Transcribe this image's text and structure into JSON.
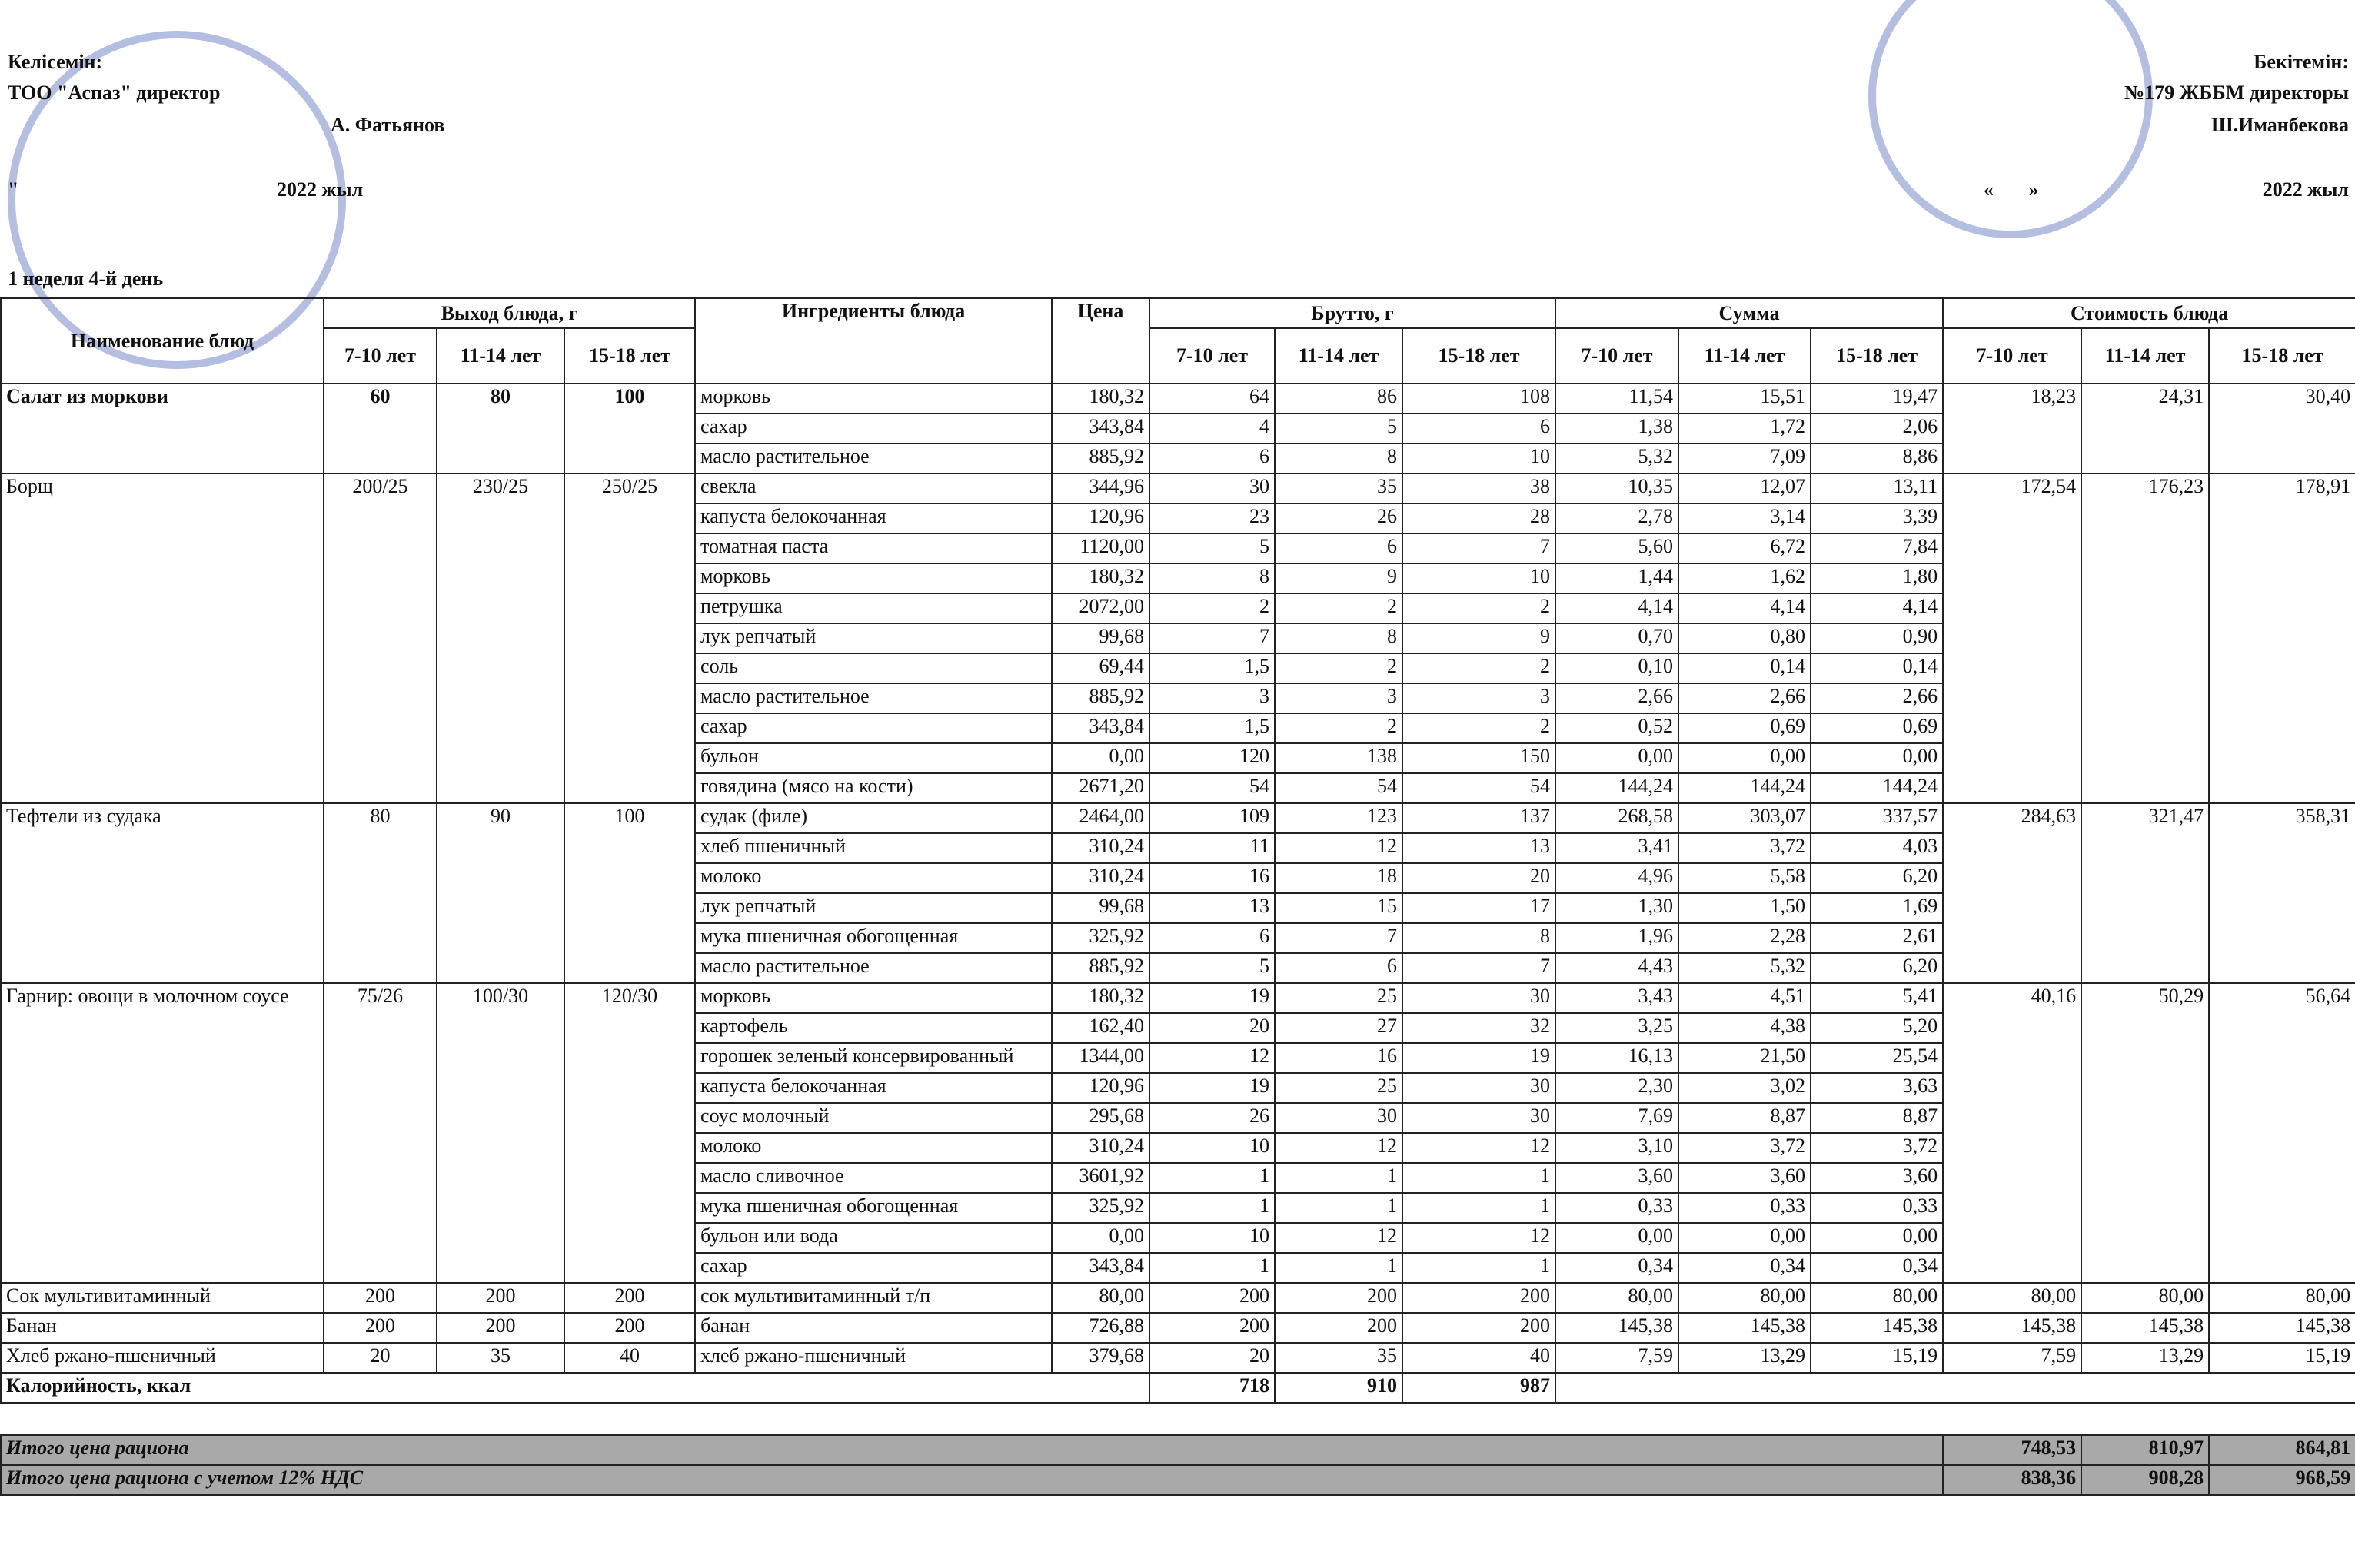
{
  "header": {
    "left": {
      "label": "Келісемін:",
      "position": "ТОО \"Аспаз\" директор",
      "signer": "А. Фатьянов",
      "date_mark": "\"",
      "date_year": "2022 жыл"
    },
    "right": {
      "label": "Бекітемін:",
      "position": "№179 ЖББМ директоры",
      "signer": "Ш.Иманбекова",
      "date_mark": "«       »",
      "date_year": "2022 жыл"
    },
    "day": "1 неделя 4-й день"
  },
  "table": {
    "columns": {
      "name": "Наименование блюд",
      "yield": "Выход блюда, г",
      "ingredients": "Ингредиенты блюда",
      "price": "Цена",
      "gross": "Брутто, г",
      "sum": "Сумма",
      "cost": "Стоимость блюда",
      "ages": [
        "7-10 лет",
        "11-14 лет",
        "15-18 лет"
      ]
    },
    "dishes": [
      {
        "name": "Салат из моркови",
        "yield": [
          "60",
          "80",
          "100"
        ],
        "cost": [
          "18,23",
          "24,31",
          "30,40"
        ],
        "ingredients": [
          [
            "морковь",
            "180,32",
            "64",
            "86",
            "108",
            "11,54",
            "15,51",
            "19,47"
          ],
          [
            "сахар",
            "343,84",
            "4",
            "5",
            "6",
            "1,38",
            "1,72",
            "2,06"
          ],
          [
            "масло растительное",
            "885,92",
            "6",
            "8",
            "10",
            "5,32",
            "7,09",
            "8,86"
          ]
        ]
      },
      {
        "name": "Борщ",
        "yield": [
          "200/25",
          "230/25",
          "250/25"
        ],
        "cost": [
          "172,54",
          "176,23",
          "178,91"
        ],
        "ingredients": [
          [
            "свекла",
            "344,96",
            "30",
            "35",
            "38",
            "10,35",
            "12,07",
            "13,11"
          ],
          [
            "капуста белокочанная",
            "120,96",
            "23",
            "26",
            "28",
            "2,78",
            "3,14",
            "3,39"
          ],
          [
            "томатная паста",
            "1120,00",
            "5",
            "6",
            "7",
            "5,60",
            "6,72",
            "7,84"
          ],
          [
            "морковь",
            "180,32",
            "8",
            "9",
            "10",
            "1,44",
            "1,62",
            "1,80"
          ],
          [
            "петрушка",
            "2072,00",
            "2",
            "2",
            "2",
            "4,14",
            "4,14",
            "4,14"
          ],
          [
            "лук репчатый",
            "99,68",
            "7",
            "8",
            "9",
            "0,70",
            "0,80",
            "0,90"
          ],
          [
            "соль",
            "69,44",
            "1,5",
            "2",
            "2",
            "0,10",
            "0,14",
            "0,14"
          ],
          [
            "масло растительное",
            "885,92",
            "3",
            "3",
            "3",
            "2,66",
            "2,66",
            "2,66"
          ],
          [
            "сахар",
            "343,84",
            "1,5",
            "2",
            "2",
            "0,52",
            "0,69",
            "0,69"
          ],
          [
            "бульон",
            "0,00",
            "120",
            "138",
            "150",
            "0,00",
            "0,00",
            "0,00"
          ],
          [
            "говядина (мясо на кости)",
            "2671,20",
            "54",
            "54",
            "54",
            "144,24",
            "144,24",
            "144,24"
          ]
        ]
      },
      {
        "name": "Тефтели из судака",
        "yield": [
          "80",
          "90",
          "100"
        ],
        "cost": [
          "284,63",
          "321,47",
          "358,31"
        ],
        "ingredients": [
          [
            "судак (филе)",
            "2464,00",
            "109",
            "123",
            "137",
            "268,58",
            "303,07",
            "337,57"
          ],
          [
            "хлеб пшеничный",
            "310,24",
            "11",
            "12",
            "13",
            "3,41",
            "3,72",
            "4,03"
          ],
          [
            "молоко",
            "310,24",
            "16",
            "18",
            "20",
            "4,96",
            "5,58",
            "6,20"
          ],
          [
            "лук репчатый",
            "99,68",
            "13",
            "15",
            "17",
            "1,30",
            "1,50",
            "1,69"
          ],
          [
            "мука пшеничная обогощенная",
            "325,92",
            "6",
            "7",
            "8",
            "1,96",
            "2,28",
            "2,61"
          ],
          [
            "масло растительное",
            "885,92",
            "5",
            "6",
            "7",
            "4,43",
            "5,32",
            "6,20"
          ]
        ]
      },
      {
        "name": "Гарнир: овощи в молочном соусе",
        "yield": [
          "75/26",
          "100/30",
          "120/30"
        ],
        "cost": [
          "40,16",
          "50,29",
          "56,64"
        ],
        "ingredients": [
          [
            "морковь",
            "180,32",
            "19",
            "25",
            "30",
            "3,43",
            "4,51",
            "5,41"
          ],
          [
            "картофель",
            "162,40",
            "20",
            "27",
            "32",
            "3,25",
            "4,38",
            "5,20"
          ],
          [
            "горошек зеленый консервированный",
            "1344,00",
            "12",
            "16",
            "19",
            "16,13",
            "21,50",
            "25,54"
          ],
          [
            "капуста белокочанная",
            "120,96",
            "19",
            "25",
            "30",
            "2,30",
            "3,02",
            "3,63"
          ],
          [
            "соус молочный",
            "295,68",
            "26",
            "30",
            "30",
            "7,69",
            "8,87",
            "8,87"
          ],
          [
            "молоко",
            "310,24",
            "10",
            "12",
            "12",
            "3,10",
            "3,72",
            "3,72"
          ],
          [
            "масло сливочное",
            "3601,92",
            "1",
            "1",
            "1",
            "3,60",
            "3,60",
            "3,60"
          ],
          [
            "мука пшеничная обогощенная",
            "325,92",
            "1",
            "1",
            "1",
            "0,33",
            "0,33",
            "0,33"
          ],
          [
            "бульон или вода",
            "0,00",
            "10",
            "12",
            "12",
            "0,00",
            "0,00",
            "0,00"
          ],
          [
            "сахар",
            "343,84",
            "1",
            "1",
            "1",
            "0,34",
            "0,34",
            "0,34"
          ]
        ]
      },
      {
        "name": "Сок мультивитаминный",
        "yield": [
          "200",
          "200",
          "200"
        ],
        "cost": [
          "80,00",
          "80,00",
          "80,00"
        ],
        "ingredients": [
          [
            "сок мультивитаминный т/п",
            "80,00",
            "200",
            "200",
            "200",
            "80,00",
            "80,00",
            "80,00"
          ]
        ]
      },
      {
        "name": "Банан",
        "yield": [
          "200",
          "200",
          "200"
        ],
        "cost": [
          "145,38",
          "145,38",
          "145,38"
        ],
        "ingredients": [
          [
            "банан",
            "726,88",
            "200",
            "200",
            "200",
            "145,38",
            "145,38",
            "145,38"
          ]
        ]
      },
      {
        "name": "Хлеб ржано-пшеничный",
        "yield": [
          "20",
          "35",
          "40"
        ],
        "cost": [
          "7,59",
          "13,29",
          "15,19"
        ],
        "ingredients": [
          [
            "хлеб ржано-пшеничный",
            "379,68",
            "20",
            "35",
            "40",
            "7,59",
            "13,29",
            "15,19"
          ]
        ]
      }
    ],
    "calories": {
      "label": "Калорийность, ккал",
      "values": [
        "718",
        "910",
        "987"
      ]
    },
    "totals": [
      {
        "label": "Итого цена рациона",
        "values": [
          "748,53",
          "810,97",
          "864,81"
        ]
      },
      {
        "label": "Итого цена рациона с учетом 12% НДС",
        "values": [
          "838,36",
          "908,28",
          "968,59"
        ]
      }
    ]
  }
}
